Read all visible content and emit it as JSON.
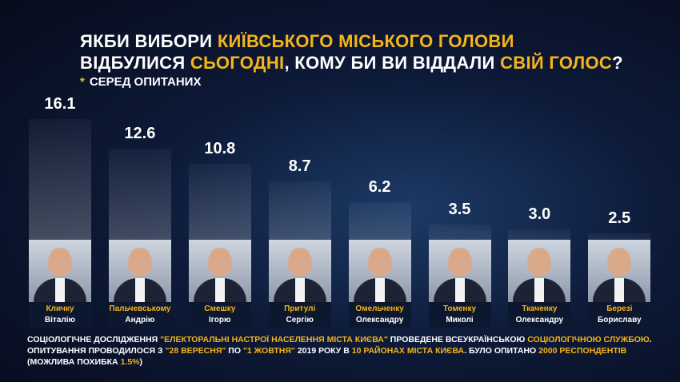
{
  "title": {
    "line1_a": "ЯКБИ ВИБОРИ ",
    "line1_b": "КИЇВСЬКОГО МІСЬКОГО ГОЛОВИ",
    "line2_a": "ВІДБУЛИСЯ ",
    "line2_b": "СЬОГОДНІ",
    "line2_c": ", КОМУ БИ ВИ ВІДДАЛИ ",
    "line2_d": "СВІЙ ГОЛОС",
    "line2_e": "?",
    "sub_star": "*",
    "sub": "СЕРЕД ОПИТАНИХ"
  },
  "chart_data": {
    "type": "bar",
    "categories": [
      "Кличку Віталію",
      "Пальчевському Андрію",
      "Смешку Ігорю",
      "Притулі Сергію",
      "Омельченку Олександру",
      "Томенку Миколі",
      "Ткаченку Олександру",
      "Березі Бориславу"
    ],
    "values": [
      16.1,
      12.6,
      10.8,
      8.7,
      6.2,
      3.5,
      3.0,
      2.5
    ],
    "labels": [
      "16.1",
      "12.6",
      "10.8",
      "8.7",
      "6.2",
      "3.5",
      "3.0",
      "2.5"
    ],
    "surnames": [
      "Кличку",
      "Пальчевському",
      "Смешку",
      "Притулі",
      "Омельченку",
      "Томенку",
      "Ткаченку",
      "Березі"
    ],
    "names": [
      "Віталію",
      "Андрію",
      "Ігорю",
      "Сергію",
      "Олександру",
      "Миколі",
      "Олександру",
      "Бориславу"
    ]
  },
  "colors": {
    "accent": "#f4b41a",
    "background": "#0d1a38"
  },
  "footer": [
    {
      "t": "СОЦІОЛОГІЧНЕ ДОСЛІДЖЕННЯ ",
      "y": false
    },
    {
      "t": "\"ЕЛЕКТОРАЛЬНІ НАСТРОЇ НАСЕЛЕННЯ МІСТА КИЄВА\"",
      "y": true
    },
    {
      "t": " ПРОВЕДЕНЕ ВСЕУКРАЇНСЬКОЮ ",
      "y": false
    },
    {
      "t": "СОЦІОЛОГІЧНОЮ СЛУЖБОЮ",
      "y": true
    },
    {
      "t": ". ОПИТУВАННЯ ПРОВОДИЛОСЯ З ",
      "y": false
    },
    {
      "t": "\"28 ВЕРЕСНЯ\"",
      "y": true
    },
    {
      "t": " ПО ",
      "y": false
    },
    {
      "t": "\"1 ЖОВТНЯ\"",
      "y": true
    },
    {
      "t": " 2019 РОКУ В ",
      "y": false
    },
    {
      "t": "10 РАЙОНАХ МІСТА КИЄВА",
      "y": true
    },
    {
      "t": ". БУЛО ОПИТАНО ",
      "y": false
    },
    {
      "t": "2000 РЕСПОНДЕНТІВ",
      "y": true
    },
    {
      "t": " (МОЖЛИВА ПОХИБКА ",
      "y": false
    },
    {
      "t": "1.5%",
      "y": true
    },
    {
      "t": ")",
      "y": false
    }
  ]
}
